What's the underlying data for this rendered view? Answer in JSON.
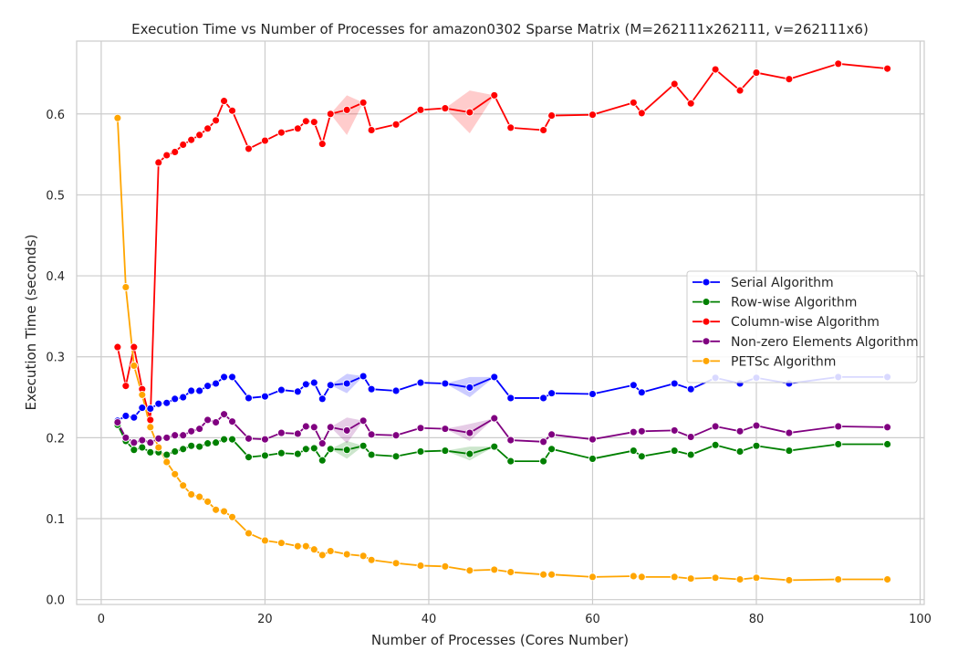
{
  "chart_data": {
    "type": "line",
    "title": "Execution Time vs Number of Processes for amazon0302 Sparse Matrix (M=262111x262111, v=262111x6)",
    "xlabel": "Number of Processes (Cores Number)",
    "ylabel": "Execution Time (seconds)",
    "xlim": [
      -3,
      100.5
    ],
    "ylim": [
      -0.006,
      0.69
    ],
    "x_ticks": [
      0,
      20,
      40,
      60,
      80,
      100
    ],
    "y_ticks": [
      0.0,
      0.1,
      0.2,
      0.3,
      0.4,
      0.5,
      0.6
    ],
    "x_tick_labels": [
      "0",
      "20",
      "40",
      "60",
      "80",
      "100"
    ],
    "y_tick_labels": [
      "0.0",
      "0.1",
      "0.2",
      "0.3",
      "0.4",
      "0.5",
      "0.6"
    ],
    "grid": true,
    "legend_position": "center-right",
    "x": [
      2,
      3,
      4,
      5,
      6,
      7,
      8,
      9,
      10,
      11,
      12,
      13,
      14,
      15,
      16,
      18,
      20,
      22,
      24,
      25,
      26,
      27,
      28,
      30,
      32,
      33,
      36,
      39,
      42,
      45,
      48,
      50,
      54,
      55,
      60,
      65,
      66,
      70,
      72,
      75,
      78,
      80,
      84,
      90,
      96
    ],
    "series": [
      {
        "name": "Serial Algorithm",
        "color": "#0000ff",
        "values": [
          0.221,
          0.227,
          0.225,
          0.237,
          0.236,
          0.242,
          0.243,
          0.248,
          0.25,
          0.258,
          0.258,
          0.264,
          0.267,
          0.275,
          0.275,
          0.249,
          0.251,
          0.259,
          0.257,
          0.266,
          0.268,
          0.248,
          0.265,
          0.267,
          0.276,
          0.26,
          0.258,
          0.268,
          0.267,
          0.262,
          0.275,
          0.249,
          0.249,
          0.255,
          0.254,
          0.265,
          0.256,
          0.267,
          0.26,
          0.274,
          0.267,
          0.274,
          0.267,
          0.275,
          0.275
        ],
        "band_low": [
          null,
          null,
          null,
          null,
          null,
          null,
          null,
          null,
          null,
          null,
          null,
          null,
          null,
          null,
          null,
          null,
          null,
          null,
          null,
          null,
          null,
          null,
          null,
          0.255,
          null,
          null,
          null,
          null,
          null,
          0.25,
          null,
          null,
          null,
          null,
          null,
          null,
          null,
          null,
          null,
          null,
          null,
          null,
          null,
          null,
          null
        ],
        "band_high": [
          null,
          null,
          null,
          null,
          null,
          null,
          null,
          null,
          null,
          null,
          null,
          null,
          null,
          null,
          null,
          null,
          null,
          null,
          null,
          null,
          null,
          null,
          null,
          0.279,
          null,
          null,
          null,
          null,
          null,
          0.275,
          null,
          null,
          null,
          null,
          null,
          null,
          null,
          null,
          null,
          null,
          null,
          null,
          null,
          null,
          null
        ]
      },
      {
        "name": "Row-wise Algorithm",
        "color": "#008000",
        "values": [
          0.216,
          0.196,
          0.185,
          0.188,
          0.182,
          0.182,
          0.179,
          0.183,
          0.186,
          0.19,
          0.189,
          0.193,
          0.194,
          0.198,
          0.198,
          0.176,
          0.178,
          0.181,
          0.18,
          0.186,
          0.187,
          0.172,
          0.186,
          0.185,
          0.19,
          0.179,
          0.177,
          0.183,
          0.184,
          0.18,
          0.189,
          0.171,
          0.171,
          0.186,
          0.174,
          0.184,
          0.177,
          0.184,
          0.179,
          0.191,
          0.183,
          0.19,
          0.184,
          0.192,
          0.192
        ],
        "band_low": [
          null,
          null,
          null,
          null,
          null,
          null,
          null,
          null,
          null,
          null,
          null,
          null,
          null,
          null,
          null,
          null,
          null,
          null,
          null,
          null,
          null,
          null,
          null,
          0.174,
          null,
          null,
          null,
          null,
          null,
          0.172,
          null,
          null,
          null,
          null,
          null,
          null,
          null,
          null,
          null,
          null,
          null,
          null,
          null,
          null,
          null
        ],
        "band_high": [
          null,
          null,
          null,
          null,
          null,
          null,
          null,
          null,
          null,
          null,
          null,
          null,
          null,
          null,
          null,
          null,
          null,
          null,
          null,
          null,
          null,
          null,
          null,
          0.196,
          null,
          null,
          null,
          null,
          null,
          0.189,
          null,
          null,
          null,
          null,
          null,
          null,
          null,
          null,
          null,
          null,
          null,
          null,
          null,
          null,
          null
        ]
      },
      {
        "name": "Column-wise Algorithm",
        "color": "#ff0000",
        "values": [
          0.312,
          0.264,
          0.312,
          0.26,
          0.222,
          0.54,
          0.549,
          0.553,
          0.562,
          0.568,
          0.574,
          0.582,
          0.592,
          0.616,
          0.604,
          0.557,
          0.567,
          0.577,
          0.582,
          0.591,
          0.59,
          0.563,
          0.6,
          0.605,
          0.614,
          0.58,
          0.587,
          0.605,
          0.607,
          0.602,
          0.623,
          0.583,
          0.58,
          0.598,
          0.599,
          0.614,
          0.601,
          0.637,
          0.613,
          0.655,
          0.629,
          0.651,
          0.643,
          0.662,
          0.656
        ],
        "band_low": [
          null,
          null,
          null,
          null,
          null,
          null,
          null,
          null,
          null,
          null,
          null,
          null,
          null,
          null,
          null,
          null,
          null,
          null,
          null,
          null,
          null,
          null,
          null,
          0.574,
          null,
          null,
          null,
          null,
          null,
          0.576,
          null,
          null,
          null,
          null,
          null,
          null,
          null,
          null,
          null,
          null,
          null,
          null,
          null,
          null,
          null
        ],
        "band_high": [
          null,
          null,
          null,
          null,
          null,
          null,
          null,
          null,
          null,
          null,
          null,
          null,
          null,
          null,
          null,
          null,
          null,
          null,
          null,
          null,
          null,
          null,
          null,
          0.623,
          null,
          null,
          null,
          null,
          null,
          0.629,
          null,
          null,
          null,
          null,
          null,
          null,
          null,
          null,
          null,
          null,
          null,
          null,
          null,
          null,
          null
        ]
      },
      {
        "name": "Non-zero Elements Algorithm",
        "color": "#800080",
        "values": [
          0.219,
          0.2,
          0.194,
          0.197,
          0.194,
          0.199,
          0.2,
          0.203,
          0.203,
          0.208,
          0.211,
          0.222,
          0.219,
          0.229,
          0.22,
          0.199,
          0.198,
          0.206,
          0.205,
          0.214,
          0.213,
          0.193,
          0.213,
          0.209,
          0.221,
          0.204,
          0.203,
          0.212,
          0.211,
          0.206,
          0.224,
          0.197,
          0.195,
          0.204,
          0.198,
          0.207,
          0.208,
          0.209,
          0.201,
          0.214,
          0.208,
          0.215,
          0.206,
          0.214,
          0.213
        ],
        "band_low": [
          null,
          null,
          null,
          null,
          null,
          null,
          null,
          null,
          null,
          null,
          null,
          null,
          null,
          null,
          null,
          null,
          null,
          null,
          null,
          null,
          null,
          null,
          null,
          0.193,
          null,
          null,
          null,
          null,
          null,
          0.196,
          null,
          null,
          null,
          null,
          null,
          null,
          null,
          null,
          null,
          null,
          null,
          null,
          null,
          null,
          null
        ],
        "band_high": [
          null,
          null,
          null,
          null,
          null,
          null,
          null,
          null,
          null,
          null,
          null,
          null,
          null,
          null,
          null,
          null,
          null,
          null,
          null,
          null,
          null,
          null,
          null,
          0.225,
          null,
          null,
          null,
          null,
          null,
          0.217,
          null,
          null,
          null,
          null,
          null,
          null,
          null,
          null,
          null,
          null,
          null,
          null,
          null,
          null,
          null
        ]
      },
      {
        "name": "PETSc Algorithm",
        "color": "#ffa500",
        "values": [
          0.595,
          0.386,
          0.289,
          0.253,
          0.213,
          0.188,
          0.17,
          0.155,
          0.141,
          0.13,
          0.127,
          0.121,
          0.111,
          0.109,
          0.102,
          0.082,
          0.073,
          0.07,
          0.066,
          0.066,
          0.062,
          0.055,
          0.06,
          0.056,
          0.054,
          0.049,
          0.045,
          0.042,
          0.041,
          0.036,
          0.037,
          0.034,
          0.031,
          0.031,
          0.028,
          0.029,
          0.028,
          0.028,
          0.026,
          0.027,
          0.025,
          0.027,
          0.024,
          0.025,
          0.025
        ],
        "band_low": [
          null,
          null,
          null,
          null,
          null,
          null,
          null,
          null,
          null,
          null,
          null,
          null,
          null,
          null,
          null,
          null,
          null,
          null,
          null,
          null,
          null,
          null,
          null,
          null,
          null,
          null,
          null,
          null,
          null,
          null,
          null,
          null,
          null,
          null,
          null,
          null,
          null,
          null,
          null,
          null,
          null,
          null,
          null,
          null,
          null
        ],
        "band_high": [
          null,
          null,
          null,
          null,
          null,
          null,
          null,
          null,
          null,
          null,
          null,
          null,
          null,
          null,
          null,
          null,
          null,
          null,
          null,
          null,
          null,
          null,
          null,
          null,
          null,
          null,
          null,
          null,
          null,
          null,
          null,
          null,
          null,
          null,
          null,
          null,
          null,
          null,
          null,
          null,
          null,
          null,
          null,
          null,
          null
        ]
      }
    ]
  }
}
